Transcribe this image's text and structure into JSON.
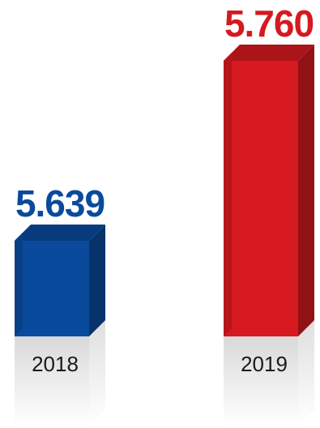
{
  "chart_data": {
    "type": "bar",
    "categories": [
      "2018",
      "2019"
    ],
    "values": [
      5.639,
      5.76
    ],
    "value_labels": [
      "5.639",
      "5.760"
    ],
    "colors": [
      "#0a4a9c",
      "#d6191f"
    ],
    "title": "",
    "xlabel": "",
    "ylabel": "",
    "grid": false,
    "legend": "none"
  }
}
